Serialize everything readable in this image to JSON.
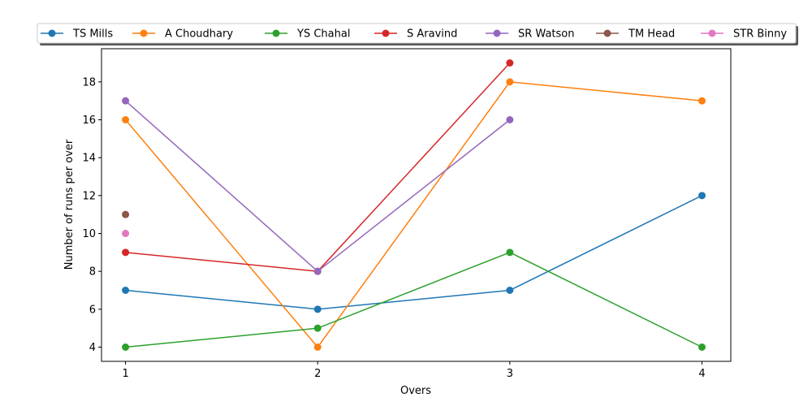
{
  "chart_data": {
    "type": "line",
    "title": "",
    "xlabel": "Overs",
    "ylabel": "Number of runs per over",
    "x": [
      1,
      2,
      3,
      4
    ],
    "xticks": [
      "1",
      "2",
      "3",
      "4"
    ],
    "yticks": [
      "4",
      "6",
      "8",
      "10",
      "12",
      "14",
      "16",
      "18"
    ],
    "xlim": [
      0.875,
      4.15
    ],
    "ylim": [
      3.25,
      19.75
    ],
    "grid": false,
    "legend_placement": "top-center",
    "series": [
      {
        "name": "TS Mills",
        "color": "#1f77b4",
        "values": [
          7,
          6,
          7,
          12
        ]
      },
      {
        "name": "A Choudhary",
        "color": "#ff7f0e",
        "values": [
          16,
          4,
          18,
          17
        ]
      },
      {
        "name": "YS Chahal",
        "color": "#2ca02c",
        "values": [
          4,
          5,
          9,
          4
        ]
      },
      {
        "name": "S Aravind",
        "color": "#d62728",
        "values": [
          9,
          8,
          19,
          null
        ]
      },
      {
        "name": "SR Watson",
        "color": "#9467bd",
        "values": [
          17,
          8,
          16,
          null
        ]
      },
      {
        "name": "TM Head",
        "color": "#8c564b",
        "values": [
          11,
          null,
          null,
          null
        ]
      },
      {
        "name": "STR Binny",
        "color": "#e377c2",
        "values": [
          10,
          null,
          null,
          null
        ]
      }
    ]
  }
}
